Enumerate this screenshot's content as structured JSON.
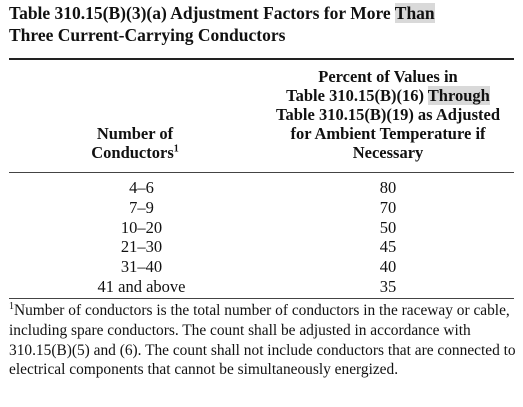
{
  "title": {
    "line1_pre": "Table 310.15(B)(3)(a)  Adjustment Factors for More ",
    "line1_hl": "Than",
    "line2": "Three Current-Carrying Conductors"
  },
  "header": {
    "col1_line1": "Number of",
    "col1_line2": "Conductors",
    "col1_sup": "1",
    "col2_line1": "Percent of Values in",
    "col2_line2_pre": "Table 310.15(B)(16) ",
    "col2_line2_hl": "Through",
    "col2_line3": "Table 310.15(B)(19) as Adjusted",
    "col2_line4": "for Ambient Temperature if",
    "col2_line5": "Necessary"
  },
  "rows": [
    {
      "conductors": "4–6",
      "percent": "80"
    },
    {
      "conductors": "7–9",
      "percent": "70"
    },
    {
      "conductors": "10–20",
      "percent": "50"
    },
    {
      "conductors": "21–30",
      "percent": "45"
    },
    {
      "conductors": "31–40",
      "percent": "40"
    },
    {
      "conductors": "41 and above",
      "percent": "35"
    }
  ],
  "footnote": {
    "sup": "1",
    "text": "Number of conductors is the total number of conductors in the raceway or cable, including spare conductors. The count shall be adjusted in accordance with 310.15(B)(5) and (6). The count shall not include conductors that are connected to electrical components that cannot be simultaneously energized."
  }
}
